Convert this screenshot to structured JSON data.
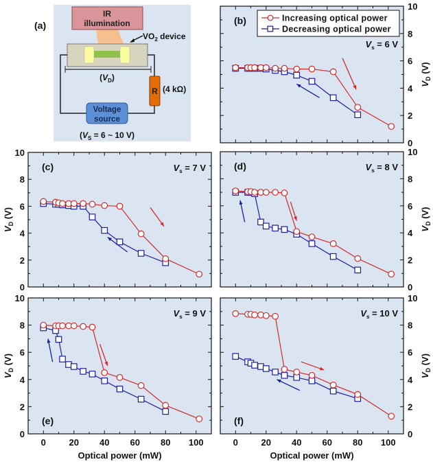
{
  "figure": {
    "panel_a": {
      "label": "(a)",
      "ir_line1": "IR",
      "ir_line2": "illumination",
      "device_label": "VO",
      "device_sub": "2",
      "device_suffix": " device",
      "vd_label_open": "(",
      "vd_label_v": "V",
      "vd_label_sub": "D",
      "vd_label_close": ")",
      "resistor": "R",
      "resistance": "(4 kΩ)",
      "source_line1": "Voltage",
      "source_line2": "source",
      "vs_open": "(",
      "vs_v": "V",
      "vs_sub": "S",
      "vs_rest": " = 6 ~ 10 V)"
    },
    "colors": {
      "increasing": "#d42a2a",
      "decreasing": "#1c1ca8",
      "plot_bg": "#dbe5f1",
      "ir_box": "#d9959a",
      "beam": "#f6c08e",
      "device": "#d8d5bf",
      "pad": "#fafa9e",
      "channel": "#8fc04a",
      "resistor": "#e36c09",
      "source": "#5b8fd6"
    }
  },
  "chart_data": [
    {
      "type": "line",
      "panel": "(b)",
      "annotation_v": "V",
      "annotation_sub": "s",
      "annotation_rest": " = 6 V",
      "xlabel": "",
      "ylabel_v": "V",
      "ylabel_sub": "D",
      "ylabel_rest": " (V)",
      "xlim": [
        -10,
        110
      ],
      "ylim": [
        0,
        10
      ],
      "xticks": [
        0,
        20,
        40,
        60,
        80,
        100
      ],
      "yticks": [
        "0",
        "2",
        "4",
        "6",
        "8",
        "10"
      ],
      "yaxis_side": "right",
      "legend": [
        "Increasing optical power",
        "Decreasing optical power"
      ],
      "legend_position": "top-right",
      "series": [
        {
          "name": "Increasing optical power",
          "marker": "circle",
          "x": [
            0,
            8,
            10,
            12.5,
            16.5,
            20,
            26,
            32,
            40,
            50,
            64,
            80,
            102
          ],
          "y": [
            5.5,
            5.5,
            5.5,
            5.5,
            5.5,
            5.5,
            5.45,
            5.45,
            5.4,
            5.4,
            5.2,
            2.6,
            1.2
          ]
        },
        {
          "name": "Decreasing optical power",
          "marker": "square",
          "x": [
            0,
            8,
            10,
            12.5,
            16.5,
            20,
            26,
            32,
            40,
            50,
            64,
            80
          ],
          "y": [
            5.45,
            5.45,
            5.45,
            5.45,
            5.45,
            5.4,
            5.3,
            5.2,
            4.95,
            4.5,
            3.3,
            2.05
          ]
        }
      ]
    },
    {
      "type": "line",
      "panel": "(c)",
      "annotation_v": "V",
      "annotation_sub": "s",
      "annotation_rest": " = 7 V",
      "xlabel": "",
      "ylabel_v": "V",
      "ylabel_sub": "D",
      "ylabel_rest": " (V)",
      "xlim": [
        -10,
        110
      ],
      "ylim": [
        0,
        10
      ],
      "xticks": [
        0,
        20,
        40,
        60,
        80,
        100
      ],
      "yticks": [
        "0",
        "2",
        "4",
        "6",
        "8",
        "10"
      ],
      "yaxis_side": "left",
      "series": [
        {
          "name": "Increasing optical power",
          "marker": "circle",
          "x": [
            0,
            8,
            10,
            12.5,
            16.5,
            20,
            26,
            32,
            40,
            50,
            64,
            80,
            102
          ],
          "y": [
            6.35,
            6.3,
            6.25,
            6.2,
            6.2,
            6.2,
            6.2,
            6.15,
            6.05,
            6.0,
            3.95,
            2.1,
            0.95
          ]
        },
        {
          "name": "Decreasing optical power",
          "marker": "square",
          "x": [
            0,
            8,
            10,
            12.5,
            16.5,
            20,
            26,
            32,
            40,
            50,
            64,
            80
          ],
          "y": [
            6.2,
            6.15,
            6.15,
            6.1,
            6.05,
            6.0,
            6.0,
            5.2,
            4.2,
            3.35,
            2.5,
            1.8
          ]
        }
      ]
    },
    {
      "type": "line",
      "panel": "(d)",
      "annotation_v": "V",
      "annotation_sub": "s",
      "annotation_rest": " = 8 V",
      "xlabel": "",
      "ylabel_v": "V",
      "ylabel_sub": "D",
      "ylabel_rest": " (V)",
      "xlim": [
        -10,
        110
      ],
      "ylim": [
        0,
        10
      ],
      "xticks": [
        0,
        20,
        40,
        60,
        80,
        100
      ],
      "yticks": [
        "0",
        "2",
        "4",
        "6",
        "8",
        "10"
      ],
      "yaxis_side": "right",
      "series": [
        {
          "name": "Increasing optical power",
          "marker": "circle",
          "x": [
            0,
            8,
            10,
            12.5,
            16.5,
            20,
            26,
            32,
            40,
            50,
            64,
            80,
            102
          ],
          "y": [
            7.1,
            7.05,
            7.05,
            7.0,
            7.0,
            7.0,
            7.0,
            6.95,
            4.1,
            3.7,
            3.2,
            2.1,
            0.95
          ]
        },
        {
          "name": "Decreasing optical power",
          "marker": "square",
          "x": [
            0,
            8,
            10,
            12.5,
            16.5,
            20,
            26,
            32,
            40,
            50,
            64,
            80
          ],
          "y": [
            7.0,
            7.0,
            7.0,
            6.9,
            4.8,
            4.5,
            4.35,
            4.25,
            3.9,
            3.2,
            2.25,
            1.25
          ]
        }
      ]
    },
    {
      "type": "line",
      "panel": "(e)",
      "annotation_v": "V",
      "annotation_sub": "s",
      "annotation_rest": " = 9 V",
      "xlabel": "Optical power (mW)",
      "ylabel_v": "V",
      "ylabel_sub": "D",
      "ylabel_rest": " (V)",
      "xlim": [
        -10,
        110
      ],
      "ylim": [
        0,
        10
      ],
      "xticks": [
        0,
        20,
        40,
        60,
        80,
        100
      ],
      "xticklabels": [
        "0",
        "20",
        "40",
        "60",
        "80",
        "100"
      ],
      "yticks": [
        "0",
        "2",
        "4",
        "6",
        "8",
        "10"
      ],
      "yaxis_side": "left",
      "series": [
        {
          "name": "Increasing optical power",
          "marker": "circle",
          "x": [
            0,
            8,
            10,
            12.5,
            16.5,
            20,
            26,
            32,
            40,
            50,
            64,
            80,
            102
          ],
          "y": [
            8.0,
            7.95,
            7.95,
            7.95,
            7.95,
            7.95,
            7.9,
            7.85,
            4.5,
            4.15,
            3.55,
            2.1,
            1.1
          ]
        },
        {
          "name": "Decreasing optical power",
          "marker": "square",
          "x": [
            0,
            8,
            10,
            12.5,
            16.5,
            20,
            26,
            32,
            40,
            50,
            64,
            80
          ],
          "y": [
            7.8,
            7.6,
            6.95,
            5.5,
            5.1,
            4.95,
            4.6,
            4.4,
            3.9,
            3.3,
            2.55,
            1.65
          ]
        }
      ]
    },
    {
      "type": "line",
      "panel": "(f)",
      "annotation_v": "V",
      "annotation_sub": "s",
      "annotation_rest": " = 10 V",
      "xlabel": "Optical power (mW)",
      "ylabel_v": "V",
      "ylabel_sub": "D",
      "ylabel_rest": " (V)",
      "xlim": [
        -10,
        110
      ],
      "ylim": [
        0,
        10
      ],
      "xticks": [
        0,
        20,
        40,
        60,
        80,
        100
      ],
      "xticklabels": [
        "0",
        "20",
        "40",
        "60",
        "80",
        "100"
      ],
      "yticks": [
        "0",
        "2",
        "4",
        "6",
        "8",
        "10"
      ],
      "yaxis_side": "right",
      "series": [
        {
          "name": "Increasing optical power",
          "marker": "circle",
          "x": [
            0,
            8,
            10,
            12.5,
            16.5,
            20,
            26,
            32,
            40,
            50,
            64,
            80,
            102
          ],
          "y": [
            8.85,
            8.8,
            8.8,
            8.75,
            8.75,
            8.7,
            8.65,
            4.75,
            4.55,
            4.3,
            3.6,
            2.9,
            1.3
          ]
        },
        {
          "name": "Decreasing optical power",
          "marker": "square",
          "x": [
            0,
            8,
            10,
            12.5,
            16.5,
            20,
            26,
            32,
            40,
            50,
            64,
            80
          ],
          "y": [
            5.7,
            5.3,
            5.2,
            5.05,
            4.95,
            4.8,
            4.55,
            4.3,
            4.15,
            3.9,
            3.15,
            2.6
          ]
        }
      ]
    }
  ]
}
